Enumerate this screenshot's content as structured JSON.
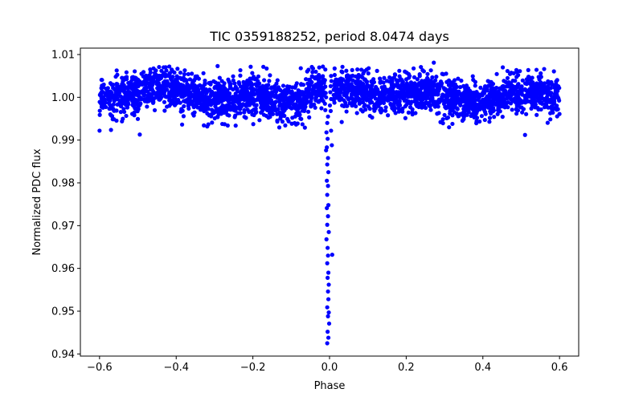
{
  "chart_data": {
    "type": "scatter",
    "title": "TIC 0359188252, period 8.0474 days",
    "xlabel": "Phase",
    "ylabel": "Normalized PDC flux",
    "xlim": [
      -0.65,
      0.65
    ],
    "ylim": [
      0.9395,
      1.0115
    ],
    "grid": false,
    "x_ticks": [
      -0.6,
      -0.4,
      -0.2,
      0.0,
      0.2,
      0.4,
      0.6
    ],
    "x_tick_labels": [
      "−0.6",
      "−0.4",
      "−0.2",
      "0.0",
      "0.2",
      "0.4",
      "0.6"
    ],
    "y_ticks": [
      0.94,
      0.95,
      0.96,
      0.97,
      0.98,
      0.99,
      1.0,
      1.01
    ],
    "y_tick_labels": [
      "0.94",
      "0.95",
      "0.96",
      "0.97",
      "0.98",
      "0.99",
      "1.00",
      "1.01"
    ],
    "marker_color": "#0000ff",
    "series": [
      {
        "name": "PDC flux",
        "phase_range": [
          -0.6,
          0.6
        ],
        "baseline_flux": 1.0006,
        "scatter_sigma": 0.0023,
        "transit": {
          "center_phase": -0.002,
          "half_width_phase": 0.012,
          "min_flux": 0.9422,
          "points": [
            [
              -0.006,
              0.9425
            ],
            [
              -0.003,
              0.9438
            ],
            [
              -0.005,
              0.9452
            ],
            [
              -0.001,
              0.9471
            ],
            [
              -0.004,
              0.9488
            ],
            [
              -0.002,
              0.9497
            ],
            [
              -0.006,
              0.9509
            ],
            [
              -0.003,
              0.9528
            ],
            [
              -0.004,
              0.9546
            ],
            [
              -0.002,
              0.9562
            ],
            [
              -0.005,
              0.9578
            ],
            [
              -0.003,
              0.959
            ],
            [
              -0.006,
              0.9612
            ],
            [
              -0.004,
              0.963
            ],
            [
              0.007,
              0.9632
            ],
            [
              -0.005,
              0.9648
            ],
            [
              -0.008,
              0.9668
            ],
            [
              -0.002,
              0.9685
            ],
            [
              -0.006,
              0.9702
            ],
            [
              -0.004,
              0.9722
            ],
            [
              -0.007,
              0.9741
            ],
            [
              -0.003,
              0.9748
            ],
            [
              -0.006,
              0.9772
            ],
            [
              -0.004,
              0.9793
            ],
            [
              -0.007,
              0.9805
            ],
            [
              -0.003,
              0.9825
            ],
            [
              -0.006,
              0.9843
            ],
            [
              -0.004,
              0.9858
            ],
            [
              -0.009,
              0.9876
            ],
            [
              -0.007,
              0.9883
            ],
            [
              0.006,
              0.9888
            ],
            [
              -0.005,
              0.9903
            ],
            [
              -0.008,
              0.9918
            ],
            [
              0.004,
              0.9922
            ],
            [
              -0.006,
              0.994
            ],
            [
              -0.004,
              0.9955
            ],
            [
              -0.011,
              0.997
            ],
            [
              0.003,
              0.9968
            ],
            [
              -0.012,
              0.9985
            ],
            [
              0.001,
              0.9981
            ],
            [
              -0.009,
              1.0
            ],
            [
              0.004,
              0.9996
            ],
            [
              -0.01,
              1.001
            ],
            [
              0.002,
              1.0012
            ],
            [
              -0.011,
              1.0025
            ],
            [
              0.003,
              1.0026
            ],
            [
              -0.012,
              1.004
            ],
            [
              0.005,
              1.0038
            ],
            [
              -0.011,
              1.0065
            ],
            [
              0.004,
              1.005
            ]
          ]
        },
        "secondary_dips": [
          {
            "phase": -0.495,
            "depth": 0.0065
          },
          {
            "phase": 0.505,
            "depth": 0.0065
          }
        ],
        "notable_points": [
          [
            0.272,
            1.0081
          ],
          [
            -0.418,
            1.0072
          ],
          [
            -0.292,
            1.0073
          ],
          [
            0.452,
            1.007
          ],
          [
            -0.075,
            1.0068
          ],
          [
            -0.6,
            0.9922
          ],
          [
            0.51,
            0.9912
          ],
          [
            -0.495,
            0.9913
          ]
        ]
      }
    ]
  }
}
